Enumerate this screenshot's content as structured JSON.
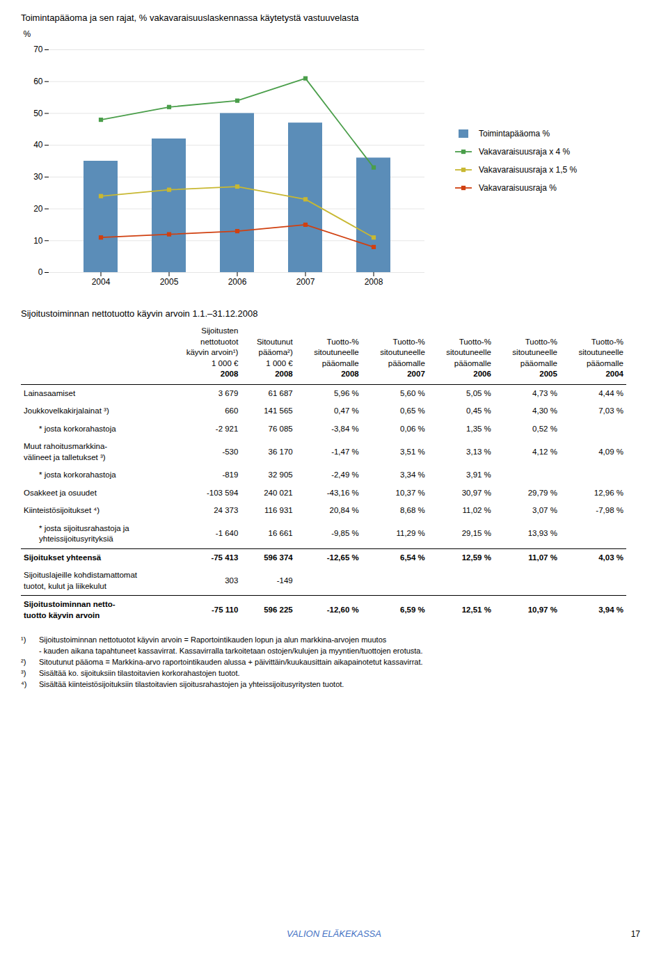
{
  "chart_data": {
    "type": "bar",
    "title": "Toimintapääoma ja sen rajat, % vakavaraisuuslaskennassa käytetystä vastuuvelasta",
    "y_label": "%",
    "categories": [
      "2004",
      "2005",
      "2006",
      "2007",
      "2008"
    ],
    "series": [
      {
        "name": "Toimintapääoma %",
        "type": "bar",
        "color": "#5b8db8",
        "values": [
          35,
          42,
          50,
          47,
          36
        ]
      },
      {
        "name": "Vakavaraisuusraja x 4 %",
        "type": "line",
        "marker": "square",
        "color": "#4a9e4a",
        "values": [
          48,
          52,
          54,
          61,
          33
        ]
      },
      {
        "name": "Vakavaraisuusraja x 1,5 %",
        "type": "line",
        "marker": "square",
        "color": "#c8b832",
        "values": [
          24,
          26,
          27,
          23,
          11
        ]
      },
      {
        "name": "Vakavaraisuusraja %",
        "type": "line",
        "marker": "square",
        "color": "#d04010",
        "values": [
          11,
          12,
          13,
          15,
          8
        ]
      }
    ],
    "ylim": [
      0,
      70
    ],
    "yticks": [
      0,
      10,
      20,
      30,
      40,
      50,
      60,
      70
    ],
    "grid": true,
    "legend": "right"
  },
  "table": {
    "title": "Sijoitustoiminnan nettotuotto käyvin arvoin 1.1.–31.12.2008",
    "columns": [
      {
        "lines": [
          "Sijoitusten",
          "nettotuotot",
          "käyvin arvoin¹)"
        ],
        "unit": "1 000 €",
        "year": "2008"
      },
      {
        "lines": [
          "Sitoutunut",
          "pääoma²)"
        ],
        "unit": "1 000 €",
        "year": "2008"
      },
      {
        "lines": [
          "Tuotto-%",
          "sitoutuneelle",
          "pääomalle"
        ],
        "year": "2008"
      },
      {
        "lines": [
          "Tuotto-%",
          "sitoutuneelle",
          "pääomalle"
        ],
        "year": "2007"
      },
      {
        "lines": [
          "Tuotto-%",
          "sitoutuneelle",
          "pääomalle"
        ],
        "year": "2006"
      },
      {
        "lines": [
          "Tuotto-%",
          "sitoutuneelle",
          "pääomalle"
        ],
        "year": "2005"
      },
      {
        "lines": [
          "Tuotto-%",
          "sitoutuneelle",
          "pääomalle"
        ],
        "year": "2004"
      }
    ],
    "rows": [
      {
        "label": [
          "Lainasaamiset"
        ],
        "indent": false,
        "bold": false,
        "values": [
          "3 679",
          "61 687",
          "5,96 %",
          "5,60 %",
          "5,05 %",
          "4,73 %",
          "4,44 %"
        ]
      },
      {
        "label": [
          "Joukkovelkakirjalainat ³)"
        ],
        "indent": false,
        "bold": false,
        "values": [
          "660",
          "141 565",
          "0,47 %",
          "0,65 %",
          "0,45 %",
          "4,30 %",
          "7,03 %"
        ]
      },
      {
        "label": [
          "* josta korkorahastoja"
        ],
        "indent": true,
        "bold": false,
        "values": [
          "-2 921",
          "76 085",
          "-3,84 %",
          "0,06 %",
          "1,35 %",
          "0,52 %",
          null
        ]
      },
      {
        "label": [
          "Muut rahoitusmarkkina-",
          "välineet ja talletukset ³)"
        ],
        "indent": false,
        "bold": false,
        "values": [
          "-530",
          "36 170",
          "-1,47 %",
          "3,51 %",
          "3,13 %",
          "4,12 %",
          "4,09 %"
        ]
      },
      {
        "label": [
          "* josta korkorahastoja"
        ],
        "indent": true,
        "bold": false,
        "values": [
          "-819",
          "32 905",
          "-2,49 %",
          "3,34 %",
          "3,91 %",
          null,
          null
        ]
      },
      {
        "label": [
          "Osakkeet ja osuudet"
        ],
        "indent": false,
        "bold": false,
        "values": [
          "-103 594",
          "240 021",
          "-43,16 %",
          "10,37 %",
          "30,97 %",
          "29,79 %",
          "12,96 %"
        ]
      },
      {
        "label": [
          "Kiinteistösijoitukset ⁴)"
        ],
        "indent": false,
        "bold": false,
        "values": [
          "24 373",
          "116 931",
          "20,84 %",
          "8,68 %",
          "11,02 %",
          "3,07 %",
          "-7,98 %"
        ]
      },
      {
        "label": [
          "* josta sijoitusrahastoja ja",
          "yhteissijoitusyrityksiä"
        ],
        "indent": true,
        "bold": false,
        "values": [
          "-1 640",
          "16 661",
          "-9,85 %",
          "11,29 %",
          "29,15 %",
          "13,93 %",
          null
        ]
      },
      {
        "label": [
          "Sijoitukset yhteensä"
        ],
        "indent": false,
        "bold": true,
        "values": [
          "-75 413",
          "596 374",
          "-12,65 %",
          "6,54 %",
          "12,59 %",
          "11,07 %",
          "4,03 %"
        ]
      },
      {
        "label": [
          "Sijoituslajeille kohdistamattomat",
          "tuotot, kulut ja liikekulut"
        ],
        "indent": false,
        "bold": false,
        "values": [
          "303",
          "-149",
          null,
          null,
          null,
          null,
          null
        ]
      },
      {
        "label": [
          "Sijoitustoiminnan netto-",
          "tuotto käyvin arvoin"
        ],
        "indent": false,
        "bold": true,
        "values": [
          "-75 110",
          "596 225",
          "-12,60 %",
          "6,59 %",
          "12,51 %",
          "10,97 %",
          "3,94 %"
        ]
      }
    ],
    "footnotes": [
      {
        "mark": "¹)",
        "text": "Sijoitustoiminnan nettotuotot käyvin arvoin = Raportointikauden lopun ja alun markkina-arvojen muutos"
      },
      {
        "text": "- kauden aikana tapahtuneet kassavirrat. Kassavirralla tarkoitetaan ostojen/kulujen ja myyntien/tuottojen erotusta."
      },
      {
        "mark": "²)",
        "text": "Sitoutunut pääoma = Markkina-arvo raportointikauden alussa + päivittäin/kuukausittain aikapainotetut kassavirrat."
      },
      {
        "mark": "³)",
        "text": "Sisältää ko. sijoituksiin tilastoitavien korkorahastojen tuotot."
      },
      {
        "mark": "⁴)",
        "text": "Sisältää kiinteistösijoituksiin tilastoitavien sijoitusrahastojen ja yhteissijoitusyritysten tuotot."
      }
    ],
    "footer": "VALION ELÄKEKASSA",
    "page_number": "17"
  }
}
